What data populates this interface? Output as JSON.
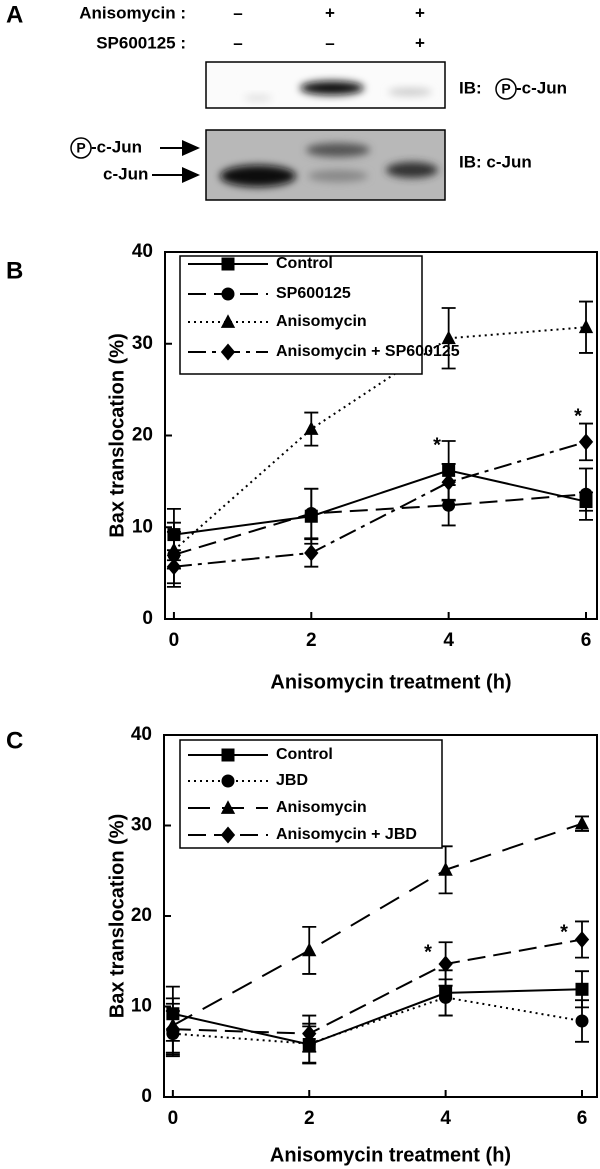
{
  "panel_labels": [
    "A",
    "B",
    "C"
  ],
  "blot": {
    "treatments": [
      {
        "label": "Anisomycin :",
        "signs": [
          "–",
          "+",
          "+"
        ]
      },
      {
        "label": "SP600125 :",
        "signs": [
          "–",
          "–",
          "+"
        ]
      }
    ],
    "ib_phospho": {
      "prefix": "IB:",
      "circle": "P",
      "suffix": "-c-Jun"
    },
    "ib_total": "IB: c-Jun",
    "band_phospho": {
      "circle": "P",
      "suffix": "-c-Jun"
    },
    "band_total": "c-Jun"
  },
  "chart_data": [
    {
      "type": "line",
      "x_label": "Anisomycin treatment (h)",
      "y_label": "Bax translocation (%)",
      "x": [
        0,
        2,
        4,
        6
      ],
      "xlim": [
        -0.13,
        6.16
      ],
      "ylim": [
        0,
        40
      ],
      "xticks": [
        0,
        2,
        4,
        6
      ],
      "yticks": [
        0,
        10,
        20,
        30,
        40
      ],
      "series": [
        {
          "name": "Control",
          "color": "#000000",
          "line_style": "solid",
          "marker": "square",
          "values": [
            9.2,
            11.2,
            16.2,
            12.8
          ],
          "errors": [
            2.8,
            3.0,
            3.2,
            1.0
          ]
        },
        {
          "name": "SP600125",
          "color": "#000000",
          "line_style": "dashed",
          "marker": "circle",
          "values": [
            7.0,
            11.5,
            12.4,
            13.6
          ],
          "errors": [
            3.5,
            2.7,
            2.2,
            2.8
          ]
        },
        {
          "name": "Anisomycin",
          "color": "#000000",
          "line_style": "dotted",
          "marker": "triangle",
          "values": [
            7.5,
            20.7,
            30.6,
            31.8
          ],
          "errors": [
            2.0,
            1.8,
            3.3,
            2.8
          ]
        },
        {
          "name": "Anisomycin + SP600125",
          "color": "#000000",
          "line_style": "dashdot",
          "marker": "diamond",
          "values": [
            5.7,
            7.2,
            14.9,
            19.3
          ],
          "errors": [
            1.8,
            1.5,
            2.0,
            2.0
          ]
        }
      ],
      "annotations": [
        "*",
        "*"
      ]
    },
    {
      "type": "line",
      "x_label": "Anisomycin treatment (h)",
      "y_label": "Bax translocation (%)",
      "x": [
        0,
        2,
        4,
        6
      ],
      "xlim": [
        -0.13,
        6.22
      ],
      "ylim": [
        0,
        40
      ],
      "xticks": [
        0,
        2,
        4,
        6
      ],
      "yticks": [
        0,
        10,
        20,
        30,
        40
      ],
      "series": [
        {
          "name": "Control",
          "color": "#000000",
          "line_style": "solid",
          "marker": "square",
          "values": [
            9.2,
            5.8,
            11.5,
            11.9
          ],
          "errors": [
            3.0,
            2.0,
            2.5,
            2.0
          ]
        },
        {
          "name": "JBD",
          "color": "#000000",
          "line_style": "dotted",
          "marker": "circle",
          "values": [
            7.0,
            5.9,
            11.0,
            8.4
          ],
          "errors": [
            2.5,
            2.2,
            2.0,
            2.3
          ]
        },
        {
          "name": "Anisomycin",
          "color": "#000000",
          "line_style": "longdash",
          "marker": "triangle",
          "values": [
            7.9,
            16.2,
            25.1,
            30.2
          ],
          "errors": [
            3.0,
            2.6,
            2.6,
            0.8
          ]
        },
        {
          "name": "Anisomycin + JBD",
          "color": "#000000",
          "line_style": "dashed",
          "marker": "diamond",
          "values": [
            7.5,
            7.0,
            14.7,
            17.4
          ],
          "errors": [
            2.8,
            2.0,
            2.4,
            2.0
          ]
        }
      ],
      "annotations": [
        "*",
        "*"
      ]
    }
  ]
}
